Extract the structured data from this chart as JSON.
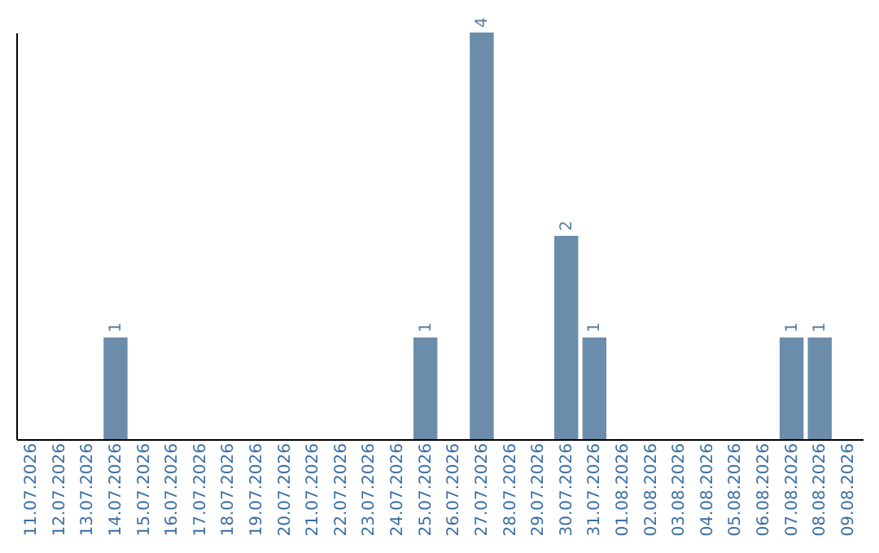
{
  "chart_data": {
    "type": "bar",
    "categories": [
      "11.07.2026",
      "12.07.2026",
      "13.07.2026",
      "14.07.2026",
      "15.07.2026",
      "16.07.2026",
      "17.07.2026",
      "18.07.2026",
      "19.07.2026",
      "20.07.2026",
      "21.07.2026",
      "22.07.2026",
      "23.07.2026",
      "24.07.2026",
      "25.07.2026",
      "26.07.2026",
      "27.07.2026",
      "28.07.2026",
      "29.07.2026",
      "30.07.2026",
      "31.07.2026",
      "01.08.2026",
      "02.08.2026",
      "03.08.2026",
      "04.08.2026",
      "05.08.2026",
      "06.08.2026",
      "07.08.2026",
      "08.08.2026",
      "09.08.2026"
    ],
    "values": [
      0,
      0,
      0,
      1,
      0,
      0,
      0,
      0,
      0,
      0,
      0,
      0,
      0,
      0,
      1,
      0,
      4,
      0,
      0,
      2,
      1,
      0,
      0,
      0,
      0,
      0,
      0,
      1,
      1,
      0
    ],
    "value_labels": [
      null,
      null,
      null,
      "1",
      null,
      null,
      null,
      null,
      null,
      null,
      null,
      null,
      null,
      null,
      "1",
      null,
      "4",
      null,
      null,
      "2",
      "1",
      null,
      null,
      null,
      null,
      null,
      null,
      "1",
      "1",
      null
    ],
    "color": "#6b8cab",
    "tick_labels": "x",
    "grid": false
  }
}
